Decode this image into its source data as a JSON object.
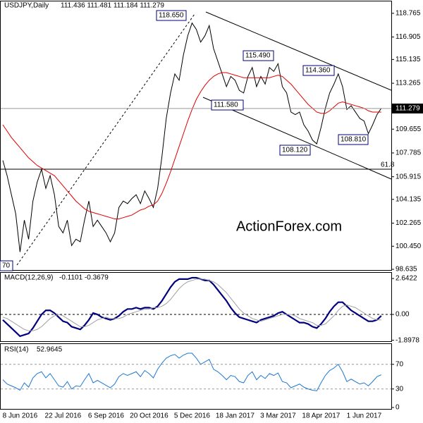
{
  "chart_data": [
    {
      "type": "line",
      "title": "USDJPY,Daily",
      "subtitle": "111.436 111.481 111.184 111.279",
      "categories": [
        null,
        null,
        null,
        null,
        "8 Jun 2016",
        null,
        null,
        null,
        null,
        null,
        null,
        null,
        null,
        null,
        "22 Jul 2016",
        null,
        null,
        null,
        null,
        null,
        null,
        null,
        null,
        null,
        "6 Sep 2016",
        null,
        null,
        null,
        null,
        null,
        null,
        null,
        null,
        null,
        "20 Oct 2016",
        null,
        null,
        null,
        null,
        null,
        null,
        null,
        null,
        null,
        "5 Dec 2016",
        null,
        null,
        null,
        null,
        null,
        null,
        null,
        null,
        null,
        "18 Jan 2017",
        null,
        null,
        null,
        null,
        null,
        null,
        null,
        null,
        null,
        "3 Mar 2017",
        null,
        null,
        null,
        null,
        null,
        null,
        null,
        null,
        null,
        "18 Apr 2017",
        null,
        null,
        null,
        null,
        null,
        null,
        null,
        null,
        null,
        "1 Jun 2017",
        null,
        null,
        null,
        null
      ],
      "series": [
        {
          "color": "#000000",
          "values": [
            107.2,
            106,
            104.5,
            103,
            100,
            102.5,
            101,
            104,
            105.5,
            106.5,
            105,
            106,
            104.5,
            102,
            101.5,
            102.5,
            100.5,
            101,
            100.8,
            102.5,
            104,
            102,
            102.5,
            102,
            101.5,
            100.8,
            101.5,
            103.5,
            104,
            103.8,
            104.2,
            104.5,
            103.8,
            104.8,
            104.2,
            103.5,
            105,
            107.5,
            110.5,
            112.5,
            114,
            113.5,
            115.5,
            117,
            118,
            117.5,
            116.5,
            117,
            117.8,
            116,
            115,
            114,
            113,
            113.8,
            113.5,
            112.7,
            112.5,
            113.8,
            114.5,
            113,
            113.8,
            113.2,
            114.5,
            114.2,
            114.8,
            113,
            112.5,
            111,
            110.8,
            111,
            110,
            109.5,
            108.8,
            108.5,
            109.8,
            111.3,
            112.5,
            113.2,
            114,
            113,
            111.2,
            111.5,
            111,
            110.5,
            110.3,
            109.3,
            110,
            110.8,
            111.3
          ]
        },
        {
          "color": "#e00000",
          "values": [
            110,
            109.5,
            109,
            108.6,
            108.2,
            107.8,
            107.4,
            107.1,
            106.8,
            106.6,
            106.4,
            106.2,
            106,
            105.6,
            105.2,
            104.8,
            104.4,
            104,
            103.7,
            103.4,
            103.2,
            103.1,
            103,
            102.9,
            102.8,
            102.7,
            102.6,
            102.6,
            102.7,
            102.8,
            102.9,
            103.1,
            103.3,
            103.4,
            103.6,
            103.7,
            104,
            104.6,
            105.4,
            106.3,
            107.3,
            108.3,
            109.3,
            110.3,
            111.2,
            112,
            112.6,
            113.1,
            113.5,
            113.8,
            114,
            114.1,
            114.1,
            114,
            113.9,
            113.8,
            113.7,
            113.7,
            113.7,
            113.7,
            113.7,
            113.7,
            113.7,
            113.8,
            113.9,
            113.8,
            113.5,
            113.2,
            112.8,
            112.4,
            112,
            111.6,
            111.3,
            111,
            110.9,
            110.9,
            111.1,
            111.4,
            111.7,
            111.8,
            111.7,
            111.6,
            111.5,
            111.4,
            111.3,
            111.1,
            111,
            111,
            111
          ]
        }
      ],
      "ylim": [
        98.58,
        119.7
      ],
      "yticks": [
        118.765,
        116.905,
        115.135,
        113.265,
        109.655,
        107.785,
        105.915,
        104.135,
        102.265,
        {
          "value": 100.45,
          "label": "100.450"
        },
        98.635
      ],
      "last_price": 111.279,
      "annotations": [
        "118.650",
        "115.490",
        "114.360",
        "111.580",
        "108.120",
        "108.810",
        "70",
        "61.8"
      ],
      "watermark": "ActionForex.com"
    },
    {
      "type": "line",
      "title": "MACD(12,26,9)",
      "subtitle": "-0.1101 -0.3679",
      "series": [
        {
          "color": "#00007f",
          "values": [
            -0.4,
            -0.7,
            -1.0,
            -1.3,
            -1.6,
            -1.5,
            -1.4,
            -1.0,
            -0.5,
            0.0,
            0.3,
            0.3,
            0.1,
            -0.2,
            -0.5,
            -0.6,
            -0.9,
            -1.0,
            -1.1,
            -0.8,
            -0.4,
            0.1,
            0.0,
            -0.2,
            -0.3,
            -0.4,
            -0.3,
            -0.1,
            0.2,
            0.4,
            0.4,
            0.5,
            0.4,
            0.5,
            0.5,
            0.4,
            0.6,
            1.0,
            1.5,
            2.0,
            2.4,
            2.6,
            2.6,
            2.6,
            2.7,
            2.7,
            2.6,
            2.5,
            2.5,
            2.2,
            1.8,
            1.4,
            1.0,
            0.5,
            0.1,
            -0.2,
            -0.3,
            -0.4,
            -0.5,
            -0.6,
            -0.4,
            -0.3,
            -0.2,
            -0.1,
            0.1,
            0.2,
            0.0,
            -0.2,
            -0.4,
            -0.6,
            -0.6,
            -0.7,
            -0.9,
            -1.0,
            -0.7,
            -0.3,
            0.2,
            0.6,
            0.9,
            0.9,
            0.6,
            0.3,
            0.1,
            -0.1,
            -0.3,
            -0.5,
            -0.5,
            -0.4,
            -0.1
          ]
        },
        {
          "color": "#a0a0a0",
          "values": [
            -0.2,
            -0.3,
            -0.5,
            -0.7,
            -0.9,
            -1.1,
            -1.2,
            -1.2,
            -1.1,
            -0.9,
            -0.6,
            -0.3,
            -0.1,
            0.0,
            -0.1,
            -0.3,
            -0.5,
            -0.7,
            -0.9,
            -0.9,
            -0.8,
            -0.6,
            -0.4,
            -0.3,
            -0.2,
            -0.3,
            -0.3,
            -0.3,
            -0.2,
            0.0,
            0.1,
            0.2,
            0.3,
            0.4,
            0.4,
            0.5,
            0.5,
            0.6,
            0.8,
            1.1,
            1.5,
            1.9,
            2.2,
            2.4,
            2.5,
            2.6,
            2.6,
            2.6,
            2.5,
            2.4,
            2.2,
            1.9,
            1.6,
            1.2,
            0.8,
            0.4,
            0.1,
            -0.1,
            -0.3,
            -0.4,
            -0.5,
            -0.4,
            -0.3,
            -0.2,
            -0.1,
            0.0,
            0.0,
            0.0,
            -0.1,
            -0.3,
            -0.4,
            -0.5,
            -0.6,
            -0.8,
            -0.8,
            -0.7,
            -0.4,
            -0.1,
            0.3,
            0.6,
            0.7,
            0.6,
            0.5,
            0.3,
            0.1,
            -0.1,
            -0.3,
            -0.4,
            -0.4
          ]
        }
      ],
      "ylim": [
        -2.02,
        3.06
      ],
      "yticks": [
        2.6422,
        {
          "value": 0,
          "label": "0.00"
        },
        -1.8978
      ]
    },
    {
      "type": "line",
      "title": "RSI(14)",
      "subtitle": "52.9645",
      "series": [
        {
          "color": "#1e78d2",
          "values": [
            45,
            38,
            35,
            32,
            28,
            40,
            33,
            48,
            55,
            58,
            48,
            55,
            45,
            35,
            33,
            42,
            30,
            35,
            34,
            45,
            55,
            40,
            44,
            40,
            36,
            32,
            38,
            50,
            55,
            52,
            55,
            58,
            50,
            60,
            55,
            48,
            62,
            72,
            80,
            84,
            86,
            80,
            85,
            88,
            88,
            80,
            70,
            74,
            78,
            62,
            58,
            52,
            45,
            52,
            50,
            42,
            40,
            52,
            58,
            45,
            52,
            47,
            55,
            52,
            56,
            42,
            40,
            32,
            35,
            38,
            33,
            30,
            28,
            27,
            40,
            52,
            60,
            64,
            70,
            58,
            42,
            46,
            42,
            38,
            40,
            35,
            42,
            50,
            53
          ]
        }
      ],
      "ylim": [
        -2.3,
        102.9
      ],
      "yticks": [
        70,
        30,
        0
      ]
    }
  ]
}
